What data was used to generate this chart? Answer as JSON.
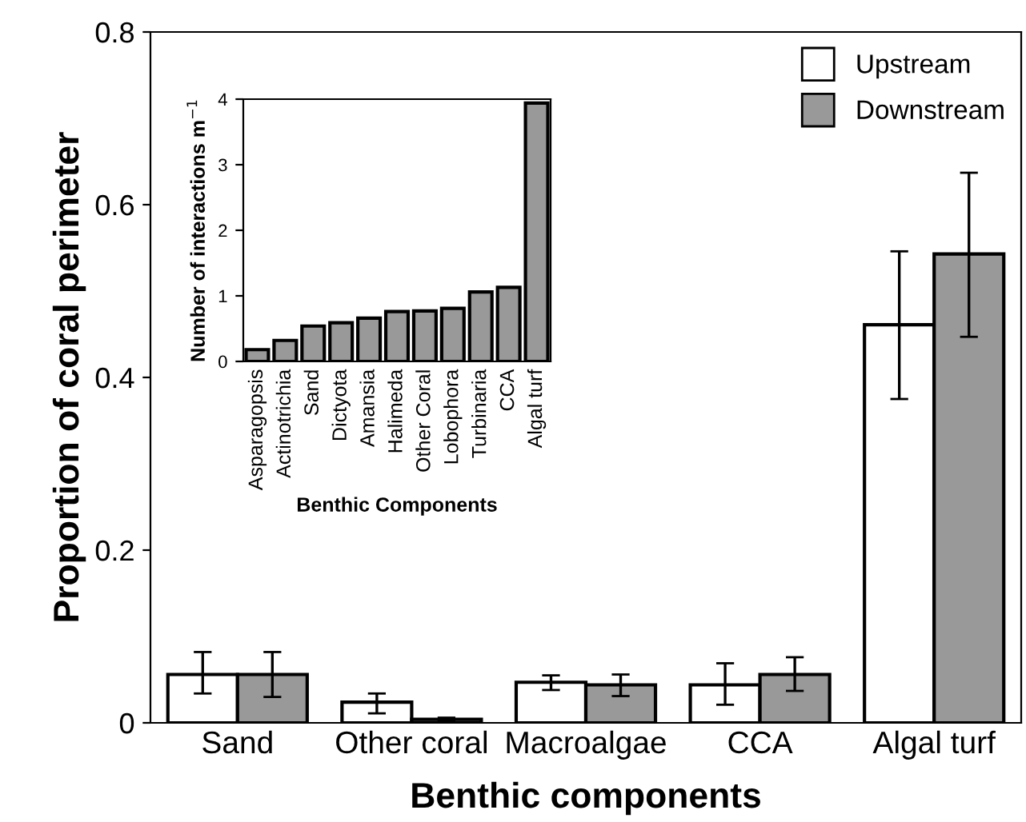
{
  "chart_data": [
    {
      "type": "bar",
      "xlabel": "Benthic components",
      "ylabel": "Proportion of coral perimeter",
      "categories": [
        "Sand",
        "Other coral",
        "Macroalgae",
        "CCA",
        "Algal turf"
      ],
      "series": [
        {
          "name": "Upstream",
          "color": "#ffffff",
          "values": [
            0.056,
            0.024,
            0.047,
            0.044,
            0.461
          ],
          "errors": [
            [
              0.034,
              0.082
            ],
            [
              0.011,
              0.034
            ],
            [
              0.038,
              0.055
            ],
            [
              0.021,
              0.069
            ],
            [
              0.375,
              0.546
            ]
          ]
        },
        {
          "name": "Downstream",
          "color": "#999999",
          "values": [
            0.056,
            0.004,
            0.044,
            0.056,
            0.543
          ],
          "errors": [
            [
              0.03,
              0.082
            ],
            [
              0.002,
              0.006
            ],
            [
              0.031,
              0.056
            ],
            [
              0.037,
              0.076
            ],
            [
              0.447,
              0.637
            ]
          ]
        }
      ],
      "ylim": [
        0,
        0.8
      ],
      "yticks": [
        0,
        0.2,
        0.4,
        0.6,
        0.8
      ],
      "legend": "top right",
      "grid": false
    },
    {
      "type": "bar",
      "xlabel": "Benthic Components",
      "ylabel": "Number of interactions m$^{−1}$",
      "categories": [
        "Asparagopsis",
        "Actinotrichia",
        "Sand",
        "Dictyota",
        "Amansia",
        "Halimeda",
        "Other Coral",
        "Lobophora",
        "Turbinaria",
        "CCA",
        "Algal turf"
      ],
      "values": [
        0.18,
        0.32,
        0.54,
        0.59,
        0.66,
        0.76,
        0.77,
        0.81,
        1.06,
        1.13,
        3.94
      ],
      "color": "#999999",
      "ylim": [
        0,
        4
      ],
      "yticks": [
        0,
        1,
        2,
        3,
        4
      ],
      "grid": false
    }
  ]
}
